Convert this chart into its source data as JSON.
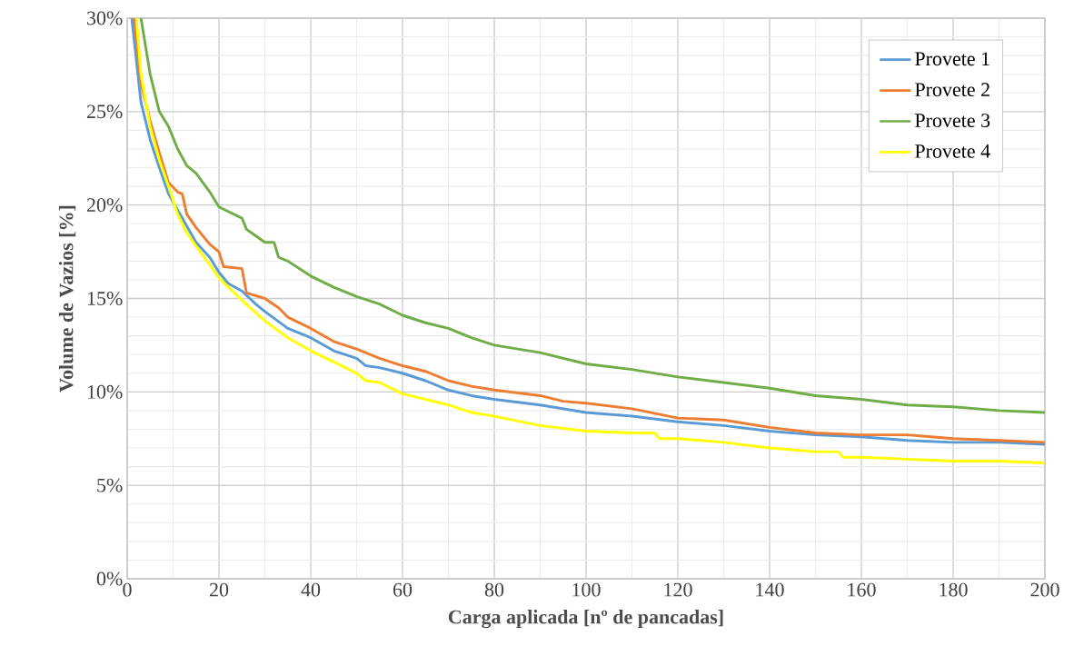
{
  "chart_data": {
    "type": "line",
    "xlabel": "Carga aplicada [nº de pancadas]",
    "ylabel": "Volume de Vazios [%]",
    "xlim": [
      0,
      200
    ],
    "xticks": [
      0,
      20,
      40,
      60,
      80,
      100,
      120,
      140,
      160,
      180,
      200
    ],
    "ylim": [
      0,
      30
    ],
    "yticks": [
      {
        "value": 0,
        "label": "0%"
      },
      {
        "value": 5,
        "label": "5%"
      },
      {
        "value": 10,
        "label": "10%"
      },
      {
        "value": 15,
        "label": "15%"
      },
      {
        "value": 20,
        "label": "20%"
      },
      {
        "value": 25,
        "label": "25%"
      },
      {
        "value": 30,
        "label": "30%"
      }
    ],
    "grid": true,
    "legend": "top right",
    "line_style": "solid",
    "series": [
      {
        "name": "Provete 1",
        "color": "#5b9bd5",
        "x": [
          1,
          3,
          5,
          7,
          9,
          12,
          15,
          18,
          20,
          22,
          25,
          28,
          30,
          35,
          40,
          45,
          50,
          52,
          55,
          60,
          65,
          70,
          75,
          80,
          90,
          100,
          110,
          120,
          130,
          140,
          150,
          160,
          170,
          180,
          190,
          200
        ],
        "values": [
          30,
          25.5,
          23.5,
          22,
          20.6,
          19.3,
          18,
          17.2,
          16.4,
          15.8,
          15.4,
          14.7,
          14.3,
          13.4,
          12.9,
          12.2,
          11.8,
          11.4,
          11.3,
          11.0,
          10.6,
          10.1,
          9.8,
          9.6,
          9.3,
          8.9,
          8.7,
          8.4,
          8.2,
          7.9,
          7.7,
          7.6,
          7.4,
          7.3,
          7.3,
          7.2
        ]
      },
      {
        "name": "Provete 2",
        "color": "#ed7d31",
        "x": [
          1.5,
          3,
          5,
          7,
          9,
          11,
          12,
          13,
          15,
          18,
          20,
          21,
          25,
          26,
          30,
          33,
          35,
          40,
          45,
          50,
          55,
          60,
          65,
          70,
          75,
          80,
          90,
          95,
          100,
          110,
          120,
          130,
          140,
          150,
          160,
          170,
          180,
          190,
          200
        ],
        "values": [
          30,
          26.5,
          24.5,
          22.8,
          21.2,
          20.7,
          20.6,
          19.5,
          18.8,
          17.9,
          17.5,
          16.7,
          16.6,
          15.3,
          15.0,
          14.5,
          14.0,
          13.4,
          12.7,
          12.3,
          11.8,
          11.4,
          11.1,
          10.6,
          10.3,
          10.1,
          9.8,
          9.5,
          9.4,
          9.1,
          8.6,
          8.5,
          8.1,
          7.8,
          7.7,
          7.7,
          7.5,
          7.4,
          7.3
        ]
      },
      {
        "name": "Provete 3",
        "color": "#70ad47",
        "x": [
          3,
          5,
          7,
          9,
          11,
          13,
          15,
          18,
          20,
          25,
          26,
          30,
          32,
          33,
          35,
          40,
          45,
          50,
          55,
          60,
          65,
          70,
          75,
          80,
          90,
          95,
          100,
          110,
          120,
          130,
          140,
          150,
          160,
          170,
          180,
          190,
          200
        ],
        "values": [
          30,
          27,
          25,
          24.2,
          23,
          22.1,
          21.7,
          20.7,
          19.9,
          19.3,
          18.7,
          18,
          18,
          17.2,
          17.0,
          16.2,
          15.6,
          15.1,
          14.7,
          14.1,
          13.7,
          13.4,
          12.9,
          12.5,
          12.1,
          11.8,
          11.5,
          11.2,
          10.8,
          10.5,
          10.2,
          9.8,
          9.6,
          9.3,
          9.2,
          9.0,
          8.9
        ]
      },
      {
        "name": "Provete 4",
        "color": "#ffff00",
        "x": [
          2,
          3,
          5,
          7,
          9,
          11,
          13,
          15,
          18,
          20,
          25,
          30,
          35,
          40,
          45,
          50,
          52,
          55,
          60,
          65,
          70,
          75,
          80,
          90,
          100,
          110,
          115,
          116,
          120,
          130,
          140,
          150,
          155,
          156,
          160,
          170,
          180,
          190,
          200
        ],
        "values": [
          30,
          27,
          24.2,
          22.4,
          21,
          19.5,
          18.5,
          17.8,
          16.8,
          16.1,
          14.9,
          13.8,
          12.9,
          12.2,
          11.6,
          11.0,
          10.6,
          10.5,
          9.9,
          9.6,
          9.3,
          8.9,
          8.7,
          8.2,
          7.9,
          7.8,
          7.8,
          7.5,
          7.5,
          7.3,
          7.0,
          6.8,
          6.8,
          6.5,
          6.5,
          6.4,
          6.3,
          6.3,
          6.2
        ]
      }
    ]
  }
}
